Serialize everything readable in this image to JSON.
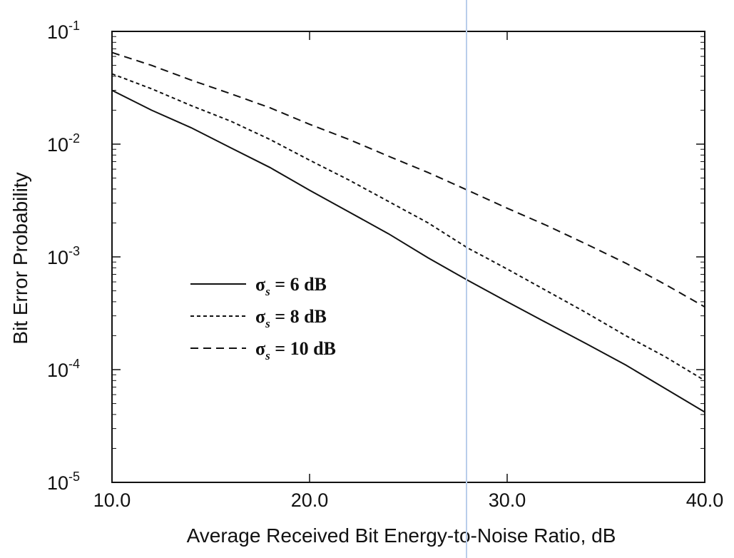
{
  "chart_data": {
    "type": "line",
    "title": "",
    "xlabel": "Average Received Bit Energy-to-Noise Ratio, dB",
    "ylabel": "Bit Error Probability",
    "xlim": [
      10,
      40
    ],
    "ylim": [
      1e-05,
      0.1
    ],
    "y_scale": "log",
    "x_ticks": [
      10,
      20,
      30,
      40
    ],
    "x_tick_labels": [
      "10.0",
      "20.0",
      "30.0",
      "40.0"
    ],
    "y_ticks": [
      0.1,
      0.01,
      0.001,
      0.0001,
      1e-05
    ],
    "y_tick_labels": [
      {
        "base": "10",
        "exp": "-1"
      },
      {
        "base": "10",
        "exp": "-2"
      },
      {
        "base": "10",
        "exp": "-3"
      },
      {
        "base": "10",
        "exp": "-4"
      },
      {
        "base": "10",
        "exp": "-5"
      }
    ],
    "grid": false,
    "legend_position": "center-left",
    "x": [
      10,
      12,
      14,
      16,
      18,
      20,
      22,
      24,
      26,
      28,
      30,
      32,
      34,
      36,
      38,
      40
    ],
    "series": [
      {
        "name": "σs = 6 dB",
        "legend_symbol": "σ",
        "legend_sub": "s",
        "legend_value": " = 6 dB",
        "line_style": "solid",
        "values": [
          0.03,
          0.02,
          0.014,
          0.0093,
          0.0062,
          0.0039,
          0.0025,
          0.0016,
          0.00098,
          0.00062,
          0.0004,
          0.00026,
          0.00017,
          0.00011,
          6.8e-05,
          4.2e-05
        ]
      },
      {
        "name": "σs = 8 dB",
        "legend_symbol": "σ",
        "legend_sub": "s",
        "legend_value": " = 8 dB",
        "line_style": "dotted",
        "values": [
          0.042,
          0.031,
          0.022,
          0.016,
          0.011,
          0.0072,
          0.0048,
          0.0031,
          0.002,
          0.0012,
          0.00078,
          0.0005,
          0.00032,
          0.0002,
          0.00013,
          8e-05
        ]
      },
      {
        "name": "σs = 10 dB",
        "legend_symbol": "σ",
        "legend_sub": "s",
        "legend_value": " = 10 dB",
        "line_style": "dashed",
        "values": [
          0.065,
          0.05,
          0.037,
          0.028,
          0.021,
          0.015,
          0.011,
          0.0078,
          0.0056,
          0.0039,
          0.0027,
          0.0019,
          0.0013,
          0.00088,
          0.00057,
          0.00036
        ]
      }
    ]
  }
}
